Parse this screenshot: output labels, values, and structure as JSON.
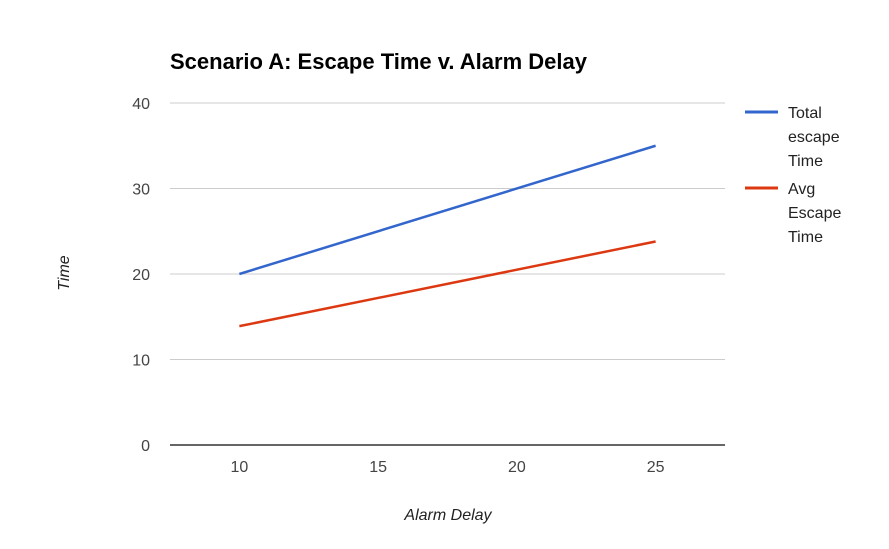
{
  "chart_data": {
    "type": "line",
    "title": "Scenario A: Escape Time v. Alarm Delay",
    "xlabel": "Alarm Delay",
    "ylabel": "Time",
    "x": [
      10,
      25
    ],
    "xlim": [
      7.5,
      27.5
    ],
    "ylim": [
      0,
      40
    ],
    "xticks": [
      "10",
      "15",
      "20",
      "25"
    ],
    "yticks": [
      "0",
      "10",
      "20",
      "30",
      "40"
    ],
    "grid": true,
    "legend_position": "right",
    "series": [
      {
        "name": "Total escape Time",
        "legend_lines": [
          "Total",
          "escape",
          "Time"
        ],
        "values": [
          20,
          35
        ],
        "color": "#3366cc"
      },
      {
        "name": "Avg Escape Time",
        "legend_lines": [
          "Avg",
          "Escape",
          "Time"
        ],
        "values": [
          13.9,
          23.8
        ],
        "color": "#dc3912"
      }
    ]
  }
}
